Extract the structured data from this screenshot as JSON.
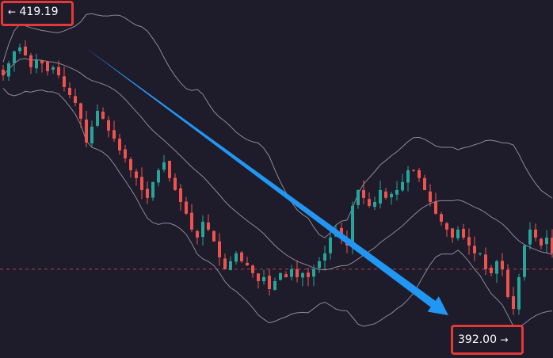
{
  "chart_data": {
    "type": "candlestick",
    "indicator": "bollinger-bands",
    "ylim": [
      392.0,
      419.19
    ],
    "high_label": "419.19",
    "low_label": "392.00",
    "closes": [
      414.48,
      415.57,
      416.66,
      417.02,
      416.3,
      415.21,
      415.93,
      415.57,
      414.85,
      415.21,
      414.48,
      413.4,
      412.67,
      411.95,
      410.5,
      408.32,
      409.77,
      411.22,
      410.5,
      409.41,
      408.68,
      407.6,
      406.87,
      405.78,
      405.06,
      403.97,
      403.25,
      404.7,
      405.78,
      406.51,
      405.06,
      403.97,
      402.88,
      401.8,
      400.35,
      399.62,
      401.07,
      400.35,
      399.26,
      397.81,
      396.72,
      397.45,
      398.17,
      397.45,
      397.08,
      396.36,
      395.63,
      395.99,
      394.9,
      395.63,
      396.36,
      395.99,
      396.72,
      395.99,
      396.36,
      395.99,
      396.72,
      397.45,
      398.17,
      399.62,
      400.35,
      399.62,
      398.89,
      402.52,
      403.97,
      403.25,
      402.52,
      402.88,
      403.97,
      403.25,
      403.61,
      403.97,
      404.7,
      405.78,
      405.78,
      405.06,
      403.97,
      402.88,
      401.8,
      401.07,
      400.35,
      399.62,
      400.35,
      399.62,
      398.89,
      398.17,
      398.17,
      396.72,
      396.36,
      397.45,
      396.72,
      394.18,
      393.09,
      395.99,
      398.89,
      400.35,
      399.62,
      398.89,
      399.62,
      398.17
    ],
    "reference_line": 396.72,
    "trend_arrow": {
      "from": 417.0,
      "to": 392.5
    },
    "colors": {
      "up": "#26a69a",
      "down": "#ef5350",
      "band": "#8c8a96",
      "arrow": "#2196f3",
      "background": "#1e1c2b",
      "highlight_box": "#e53935",
      "reference_line": "#ef5350"
    }
  },
  "labels": {
    "high": {
      "arrow": "←",
      "value": "419.19"
    },
    "low": {
      "arrow": "→",
      "value": "392.00"
    }
  }
}
